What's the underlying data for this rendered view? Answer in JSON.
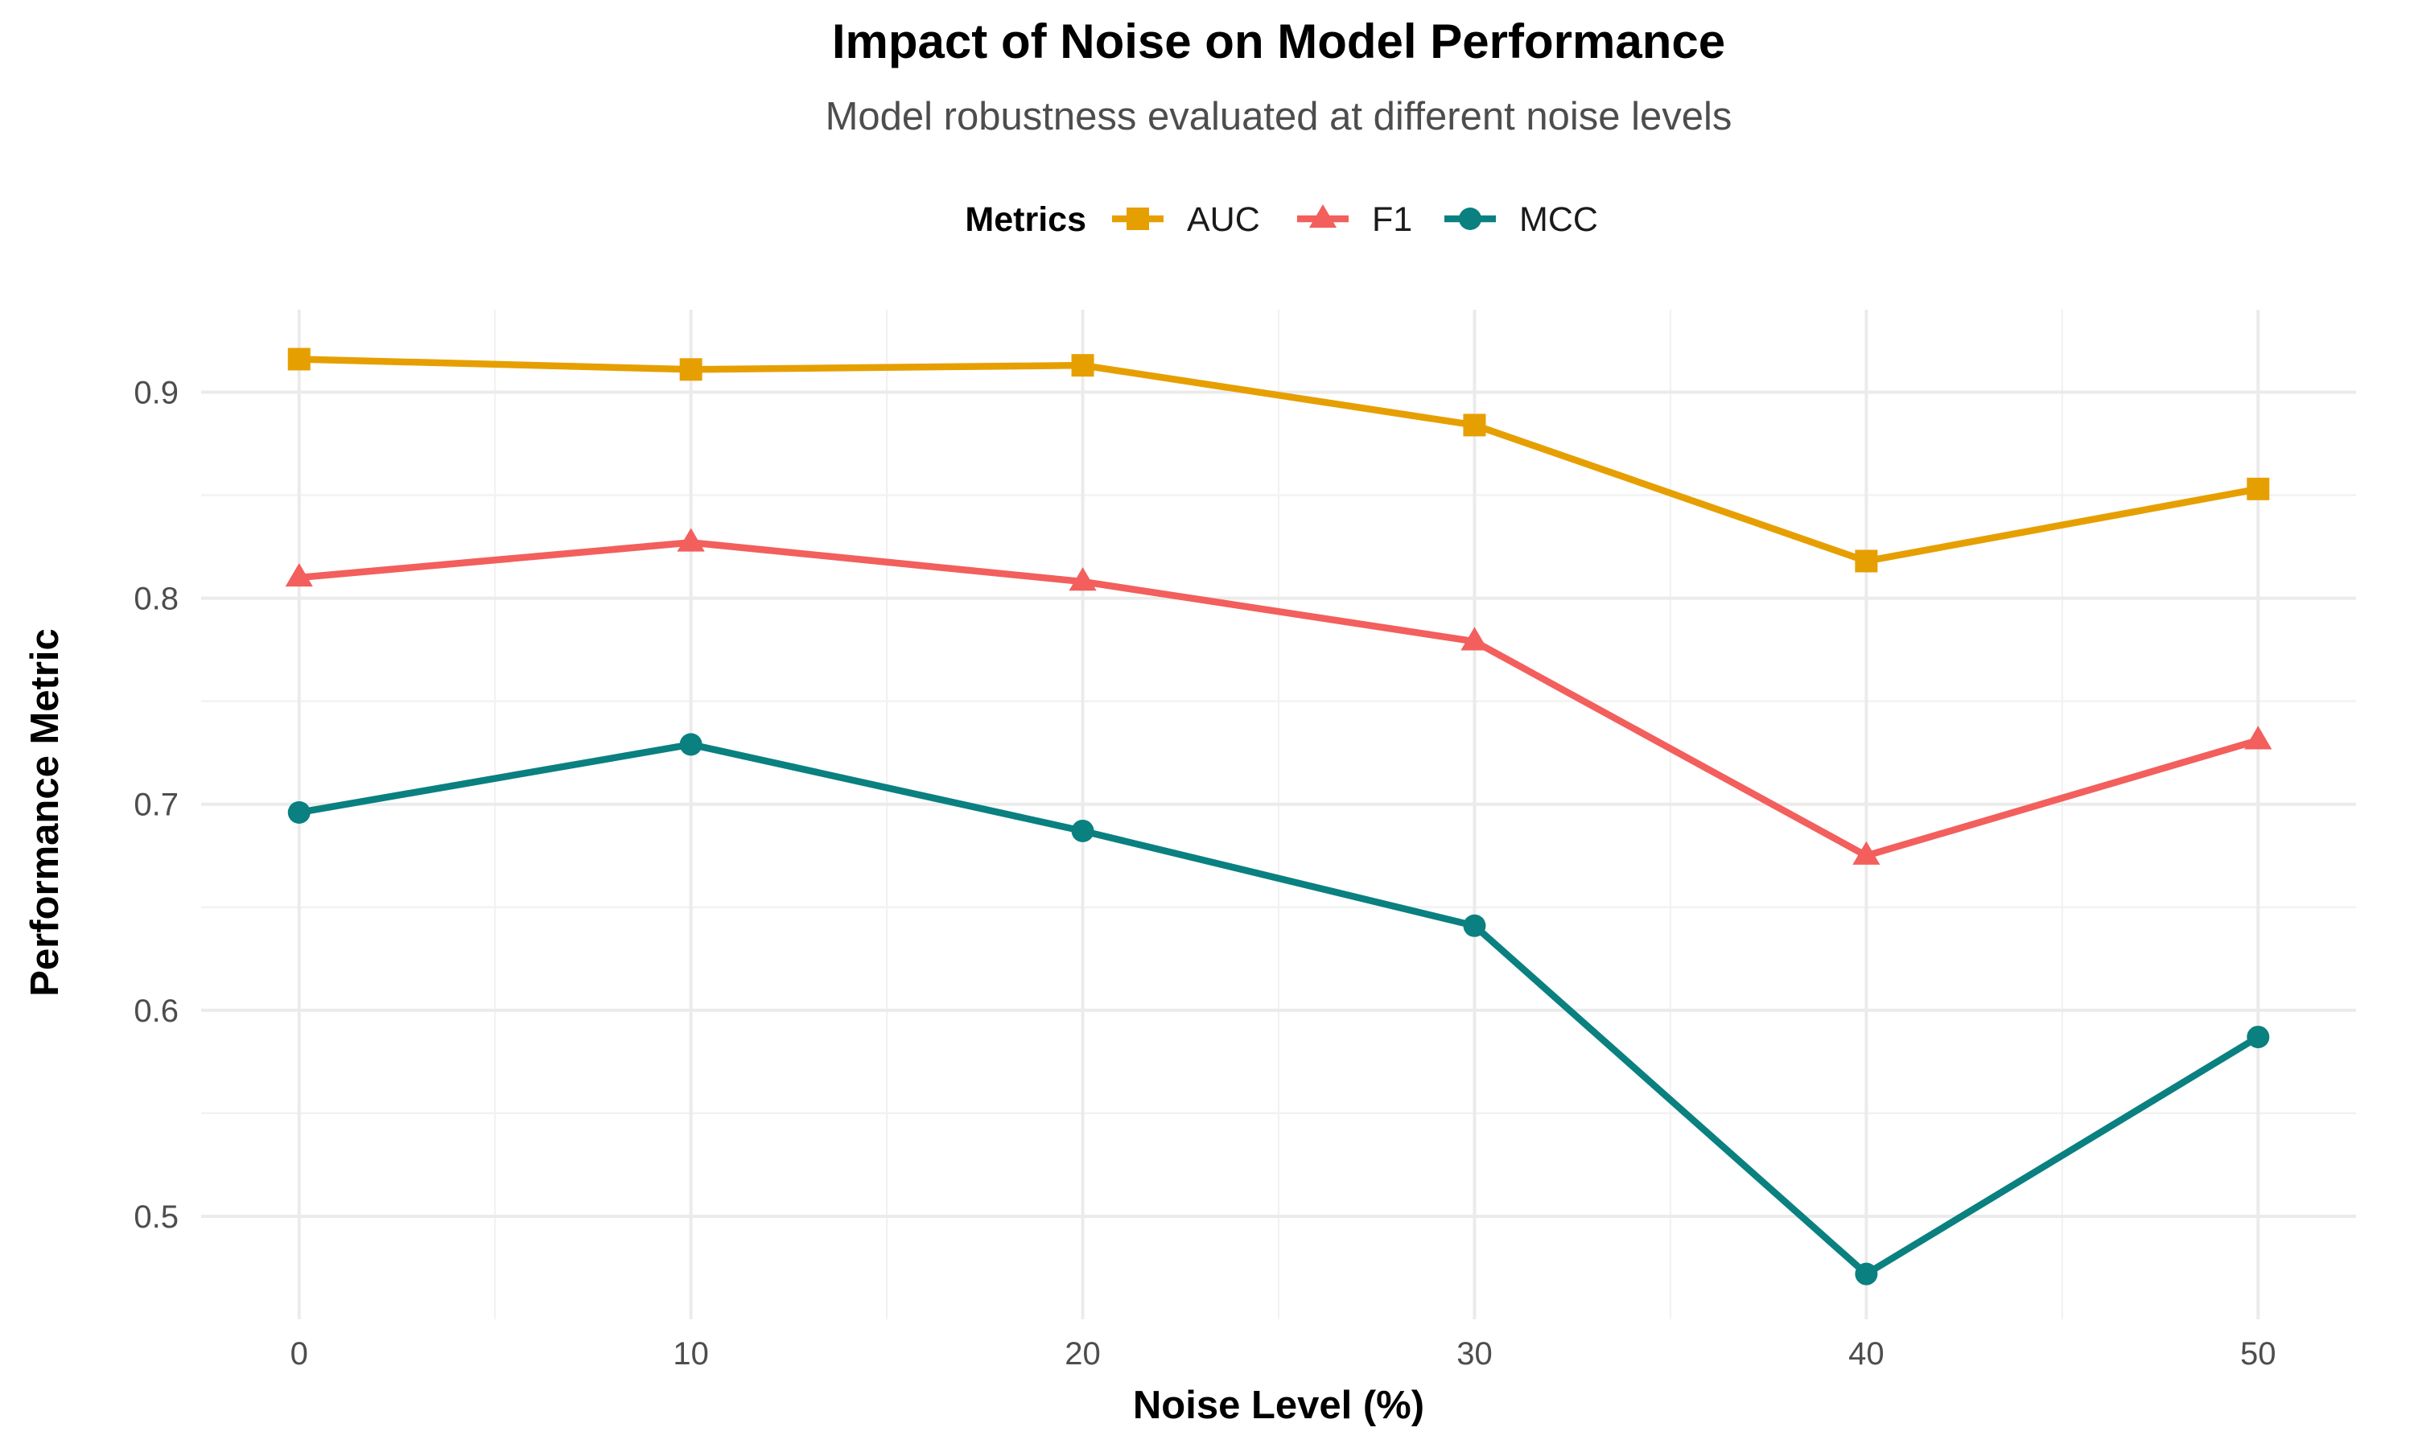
{
  "chart_data": {
    "type": "line",
    "title": "Impact of Noise on Model Performance",
    "subtitle": "Model robustness evaluated at different noise levels",
    "xlabel": "Noise Level (%)",
    "ylabel": "Performance Metric",
    "x": [
      0,
      10,
      20,
      30,
      40,
      50
    ],
    "xlim": [
      -2.5,
      52.5
    ],
    "ylim": [
      0.45,
      0.94
    ],
    "xticks": [
      "0",
      "10",
      "20",
      "30",
      "40",
      "50"
    ],
    "yticks": [
      "0.5",
      "0.6",
      "0.7",
      "0.8",
      "0.9"
    ],
    "grid": true,
    "legend": {
      "title": "Metrics",
      "position": "top",
      "entries": [
        "AUC",
        "F1",
        "MCC"
      ]
    },
    "series": [
      {
        "name": "AUC",
        "color": "#E69F00",
        "marker": "square",
        "values": [
          0.916,
          0.911,
          0.913,
          0.884,
          0.818,
          0.853
        ]
      },
      {
        "name": "F1",
        "color": "#F25F5C",
        "marker": "triangle",
        "values": [
          0.81,
          0.827,
          0.808,
          0.779,
          0.675,
          0.731
        ]
      },
      {
        "name": "MCC",
        "color": "#0A8080",
        "marker": "circle",
        "values": [
          0.696,
          0.729,
          0.687,
          0.641,
          0.472,
          0.587
        ]
      }
    ]
  }
}
